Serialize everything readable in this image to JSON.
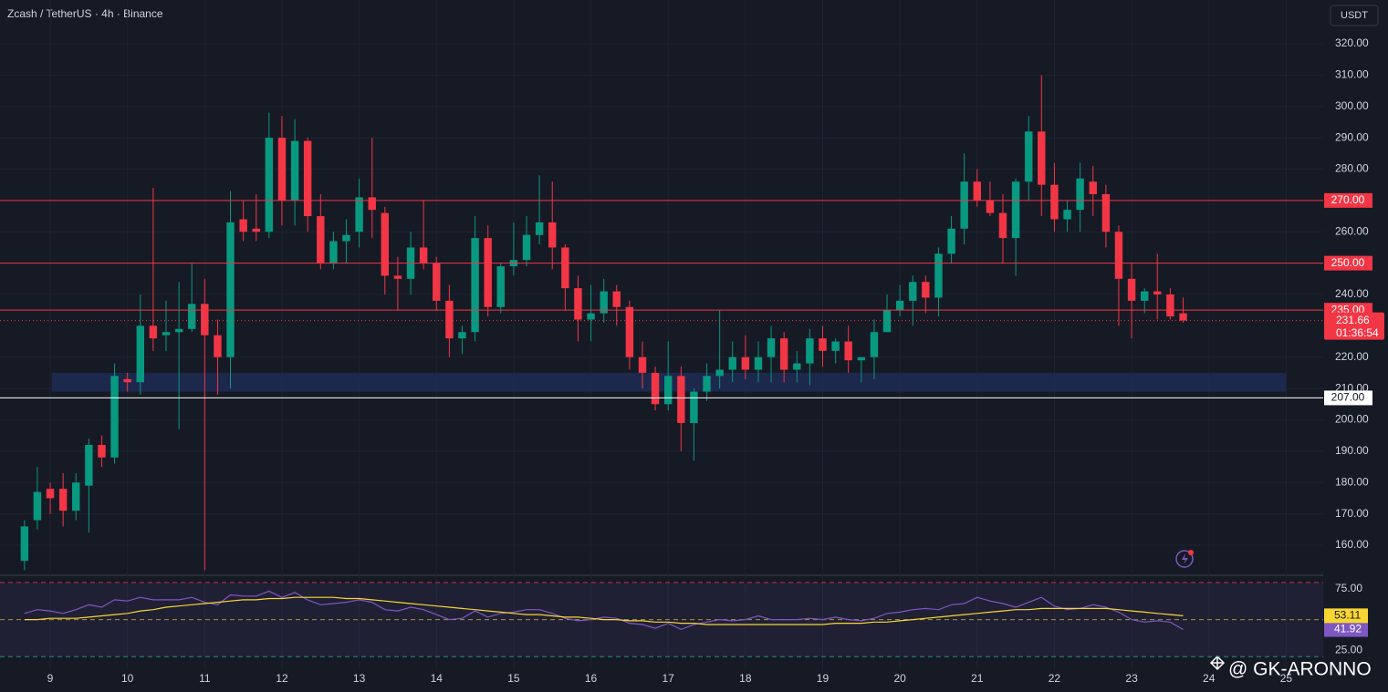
{
  "header": {
    "symbol": "Zcash / TetherUS · 4h · Binance",
    "currency": "USDT",
    "watermark": "@ GK-ARONNO"
  },
  "chart_data": [
    {
      "type": "candlestick",
      "x": [
        8.667,
        8.833,
        9,
        9.167,
        9.333,
        9.5,
        9.667,
        9.833,
        10,
        10.167,
        10.333,
        10.5,
        10.667,
        10.833,
        11,
        11.167,
        11.333,
        11.5,
        11.667,
        11.833,
        12,
        12.167,
        12.333,
        12.5,
        12.667,
        12.833,
        13,
        13.167,
        13.333,
        13.5,
        13.667,
        13.833,
        14,
        14.167,
        14.333,
        14.5,
        14.667,
        14.833,
        15,
        15.167,
        15.333,
        15.5,
        15.667,
        15.833,
        16,
        16.167,
        16.333,
        16.5,
        16.667,
        16.833,
        17,
        17.167,
        17.333,
        17.5,
        17.667,
        17.833,
        18,
        18.167,
        18.333,
        18.5,
        18.667,
        18.833,
        19,
        19.167,
        19.333,
        19.5,
        19.667,
        19.833,
        20,
        20.167,
        20.333,
        20.5,
        20.667,
        20.833,
        21,
        21.167,
        21.333,
        21.5,
        21.667,
        21.833,
        22,
        22.167,
        22.333,
        22.5,
        22.667,
        22.833,
        23,
        23.167,
        23.333,
        23.5,
        23.667
      ],
      "open": [
        155,
        168,
        178,
        178,
        171,
        179,
        192,
        188,
        213,
        212,
        230,
        227,
        228,
        229,
        237,
        227,
        220,
        264,
        261,
        260,
        290,
        270,
        289,
        265,
        250,
        257,
        260,
        271,
        266,
        246,
        245,
        255,
        250,
        238,
        226,
        228,
        258,
        236,
        249,
        251,
        259,
        263,
        255,
        242,
        232,
        234,
        241,
        236,
        220,
        215,
        205,
        214,
        199,
        209,
        214,
        216,
        220,
        216,
        220,
        226,
        216,
        218,
        226,
        222,
        225,
        219,
        220,
        228,
        235,
        238,
        244,
        239,
        253,
        261,
        276,
        270,
        266,
        258,
        276,
        292,
        275,
        264,
        267,
        276,
        272,
        260,
        245,
        238,
        241,
        240,
        234
      ],
      "high": [
        168,
        185,
        180,
        183,
        183,
        194,
        195,
        218,
        215,
        240,
        274,
        238,
        244,
        250,
        245,
        232,
        273,
        270,
        272,
        298,
        297,
        296,
        290,
        272,
        260,
        264,
        277,
        290,
        268,
        252,
        260,
        270,
        252,
        243,
        230,
        265,
        262,
        250,
        263,
        265,
        278,
        276,
        256,
        246,
        243,
        245,
        243,
        238,
        225,
        217,
        225,
        217,
        210,
        218,
        235,
        225,
        227,
        225,
        230,
        228,
        222,
        229,
        230,
        226,
        230,
        220,
        232,
        240,
        243,
        246,
        246,
        255,
        265,
        285,
        280,
        276,
        272,
        277,
        297,
        310,
        282,
        270,
        282,
        281,
        275,
        262,
        250,
        242,
        253,
        242,
        239
      ],
      "low": [
        152,
        165,
        170,
        166,
        168,
        164,
        185,
        186,
        209,
        208,
        222,
        222,
        197,
        228,
        152,
        208,
        210,
        257,
        257,
        258,
        262,
        262,
        260,
        248,
        248,
        250,
        255,
        258,
        240,
        235,
        240,
        248,
        235,
        220,
        221,
        225,
        233,
        234,
        246,
        249,
        256,
        248,
        235,
        225,
        225,
        231,
        230,
        216,
        210,
        203,
        203,
        190,
        187,
        206,
        210,
        212,
        213,
        212,
        212,
        212,
        212,
        211,
        217,
        218,
        215,
        212,
        213,
        228,
        233,
        230,
        234,
        233,
        250,
        256,
        268,
        265,
        250,
        246,
        270,
        265,
        260,
        260,
        260,
        265,
        255,
        230,
        226,
        234,
        232,
        232,
        231
      ],
      "close": [
        166,
        177,
        175,
        171,
        180,
        192,
        188,
        214,
        212,
        230,
        226,
        228,
        229,
        237,
        227,
        220,
        263,
        260,
        260,
        290,
        270,
        289,
        265,
        250,
        257,
        259,
        271,
        267,
        246,
        245,
        255,
        250,
        238,
        226,
        228,
        258,
        236,
        249,
        251,
        259,
        263,
        255,
        242,
        232,
        234,
        241,
        236,
        220,
        215,
        205,
        214,
        199,
        209,
        214,
        216,
        220,
        216,
        220,
        226,
        216,
        218,
        226,
        222,
        225,
        219,
        220,
        228,
        235,
        238,
        244,
        239,
        253,
        261,
        276,
        270,
        266,
        258,
        276,
        292,
        275,
        264,
        267,
        277,
        272,
        260,
        245,
        238,
        241,
        240,
        233,
        231.66
      ],
      "up_color": "#089981",
      "down_color": "#f23645",
      "xlim": [
        8.35,
        25.48
      ],
      "xticks": [
        9,
        10,
        11,
        12,
        13,
        14,
        15,
        16,
        17,
        18,
        19,
        20,
        21,
        22,
        23,
        24,
        25
      ],
      "ylim": [
        150.69,
        333.96
      ],
      "yticks": [
        {
          "value": 160,
          "label": "160.00"
        },
        {
          "value": 170,
          "label": "170.00"
        },
        {
          "value": 180,
          "label": "180.00"
        },
        {
          "value": 190,
          "label": "190.00"
        },
        {
          "value": 200,
          "label": "200.00"
        },
        {
          "value": 210,
          "label": "210.00"
        },
        {
          "value": 220,
          "label": "220.00"
        },
        {
          "value": 240,
          "label": "240.00"
        },
        {
          "value": 260,
          "label": "260.00"
        },
        {
          "value": 280,
          "label": "280.00"
        },
        {
          "value": 290,
          "label": "290.00"
        },
        {
          "value": 300,
          "label": "300.00"
        },
        {
          "value": 310,
          "label": "310.00"
        },
        {
          "value": 320,
          "label": "320.00"
        }
      ],
      "levels": [
        {
          "value": 270,
          "label": "270.00",
          "color": "#f23645"
        },
        {
          "value": 250,
          "label": "250.00",
          "color": "#f23645"
        },
        {
          "value": 235,
          "label": "235.00",
          "color": "#f23645"
        },
        {
          "value": 207,
          "label": "207.00",
          "color": "#ffffff"
        }
      ],
      "zone": {
        "from": 209,
        "to": 215,
        "x": [
          9.02,
          25.0
        ],
        "color": "#1e2b55"
      },
      "last_price": {
        "value": 231.66,
        "label": "231.66"
      },
      "countdown": "01:36:54",
      "grid": true
    },
    {
      "type": "line",
      "x": [
        8.667,
        8.833,
        9,
        9.167,
        9.333,
        9.5,
        9.667,
        9.833,
        10,
        10.167,
        10.333,
        10.5,
        10.667,
        10.833,
        11,
        11.167,
        11.333,
        11.5,
        11.667,
        11.833,
        12,
        12.167,
        12.333,
        12.5,
        12.667,
        12.833,
        13,
        13.167,
        13.333,
        13.5,
        13.667,
        13.833,
        14,
        14.167,
        14.333,
        14.5,
        14.667,
        14.833,
        15,
        15.167,
        15.333,
        15.5,
        15.667,
        15.833,
        16,
        16.167,
        16.333,
        16.5,
        16.667,
        16.833,
        17,
        17.167,
        17.333,
        17.5,
        17.667,
        17.833,
        18,
        18.167,
        18.333,
        18.5,
        18.667,
        18.833,
        19,
        19.167,
        19.333,
        19.5,
        19.667,
        19.833,
        20,
        20.167,
        20.333,
        20.5,
        20.667,
        20.833,
        21,
        21.167,
        21.333,
        21.5,
        21.667,
        21.833,
        22,
        22.167,
        22.333,
        22.5,
        22.667,
        22.833,
        23,
        23.167,
        23.333,
        23.5,
        23.667
      ],
      "series": [
        {
          "color": "#7e57c2",
          "last_label": {
            "value": 41.92,
            "label": "41.92"
          },
          "values": [
            55,
            58,
            57,
            55,
            58,
            62,
            60,
            66,
            65,
            68,
            66,
            66,
            66,
            68,
            64,
            62,
            70,
            69,
            69,
            73,
            68,
            72,
            66,
            62,
            63,
            64,
            66,
            64,
            58,
            57,
            60,
            58,
            54,
            50,
            51,
            57,
            52,
            55,
            56,
            58,
            58,
            55,
            51,
            49,
            50,
            52,
            51,
            47,
            46,
            43,
            47,
            42,
            46,
            48,
            50,
            49,
            50,
            53,
            50,
            50,
            50,
            51,
            50,
            52,
            50,
            49,
            51,
            55,
            56,
            58,
            59,
            58,
            62,
            63,
            68,
            65,
            63,
            60,
            64,
            68,
            61,
            58,
            59,
            62,
            60,
            56,
            50,
            48,
            49,
            48,
            41.92
          ]
        },
        {
          "color": "#f7d634",
          "last_label": {
            "value": 53.11,
            "label": "53.11"
          },
          "values": [
            50,
            50,
            51,
            51,
            51,
            52,
            53,
            54,
            55,
            57,
            58,
            60,
            61,
            62,
            63,
            64,
            65,
            66,
            66,
            67,
            67,
            68,
            68,
            68,
            68,
            67,
            67,
            66,
            65,
            64,
            63,
            62,
            61,
            60,
            59,
            58,
            57,
            56,
            55,
            54,
            54,
            53,
            52,
            52,
            51,
            50,
            50,
            49,
            49,
            48,
            48,
            47,
            47,
            46,
            46,
            46,
            46,
            46,
            46,
            46,
            46,
            46,
            46,
            47,
            47,
            47,
            48,
            48,
            49,
            50,
            51,
            52,
            53,
            54,
            55,
            56,
            57,
            58,
            58,
            59,
            59,
            59,
            59,
            59,
            59,
            58,
            57,
            56,
            55,
            54,
            53.11
          ]
        }
      ],
      "xlim": [
        8.35,
        25.48
      ],
      "ylim": [
        9.1,
        85.1
      ],
      "yticks": [
        {
          "value": 25,
          "label": "25.00"
        },
        {
          "value": 75,
          "label": "75.00"
        }
      ],
      "bands": [
        80,
        50,
        20
      ]
    }
  ]
}
